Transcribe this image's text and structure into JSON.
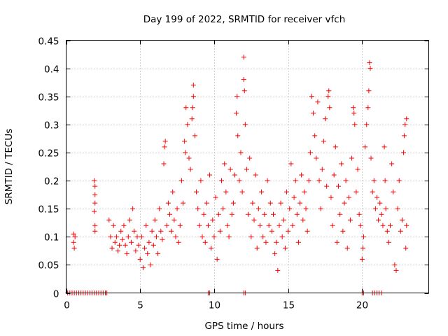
{
  "chart_data": {
    "type": "scatter",
    "title": "Day 199 of 2022, SRMTID for receiver vfch",
    "xlabel": "GPS time / hours",
    "ylabel": "SRMTID / TECUs",
    "xlim": [
      0,
      24.5
    ],
    "ylim": [
      0,
      0.45
    ],
    "x_ticks": [
      0,
      5,
      10,
      15,
      20
    ],
    "x_tick_labels": [
      "0",
      "5",
      "10",
      "15",
      "20"
    ],
    "y_ticks": [
      0,
      0.05,
      0.1,
      0.15,
      0.2,
      0.25,
      0.3,
      0.35,
      0.4,
      0.45
    ],
    "y_tick_labels": [
      "0",
      "0.05",
      "0.1",
      "0.15",
      "0.2",
      "0.25",
      "0.3",
      "0.35",
      "0.4",
      "0.45"
    ],
    "grid": true,
    "marker": "plus",
    "point_color": "#ff0000",
    "series": [
      {
        "name": "vfch",
        "points": [
          [
            0.1,
            0
          ],
          [
            0.25,
            0
          ],
          [
            0.4,
            0
          ],
          [
            0.55,
            0
          ],
          [
            0.7,
            0
          ],
          [
            0.85,
            0
          ],
          [
            1.0,
            0
          ],
          [
            1.15,
            0
          ],
          [
            1.3,
            0
          ],
          [
            1.45,
            0
          ],
          [
            1.6,
            0
          ],
          [
            1.75,
            0
          ],
          [
            1.9,
            0
          ],
          [
            2.05,
            0
          ],
          [
            2.2,
            0
          ],
          [
            2.35,
            0
          ],
          [
            2.5,
            0
          ],
          [
            2.65,
            0
          ],
          [
            2.75,
            0
          ],
          [
            9.6,
            0
          ],
          [
            9.7,
            0
          ],
          [
            12.0,
            0
          ],
          [
            12.1,
            0
          ],
          [
            20.0,
            0
          ],
          [
            20.1,
            0
          ],
          [
            20.7,
            0
          ],
          [
            20.85,
            0
          ],
          [
            21.0,
            0
          ],
          [
            21.15,
            0
          ],
          [
            21.3,
            0
          ],
          [
            0.5,
            0.105
          ],
          [
            0.5,
            0.09
          ],
          [
            0.55,
            0.08
          ],
          [
            0.6,
            0.1
          ],
          [
            1.9,
            0.2
          ],
          [
            1.95,
            0.19
          ],
          [
            1.95,
            0.175
          ],
          [
            1.95,
            0.16
          ],
          [
            1.9,
            0.145
          ],
          [
            1.95,
            0.12
          ],
          [
            1.95,
            0.11
          ],
          [
            2.9,
            0.13
          ],
          [
            3.0,
            0.1
          ],
          [
            3.1,
            0.08
          ],
          [
            3.2,
            0.12
          ],
          [
            3.3,
            0.09
          ],
          [
            3.4,
            0.1
          ],
          [
            3.5,
            0.075
          ],
          [
            3.6,
            0.085
          ],
          [
            3.7,
            0.11
          ],
          [
            3.8,
            0.095
          ],
          [
            3.9,
            0.12
          ],
          [
            4.0,
            0.085
          ],
          [
            4.1,
            0.07
          ],
          [
            4.2,
            0.1
          ],
          [
            4.3,
            0.13
          ],
          [
            4.4,
            0.09
          ],
          [
            4.5,
            0.15
          ],
          [
            4.6,
            0.11
          ],
          [
            4.7,
            0.075
          ],
          [
            4.8,
            0.1
          ],
          [
            4.9,
            0.085
          ],
          [
            5.0,
            0.06
          ],
          [
            5.1,
            0.1
          ],
          [
            5.2,
            0.045
          ],
          [
            5.3,
            0.08
          ],
          [
            5.4,
            0.12
          ],
          [
            5.5,
            0.07
          ],
          [
            5.6,
            0.09
          ],
          [
            5.7,
            0.05
          ],
          [
            5.8,
            0.11
          ],
          [
            5.9,
            0.085
          ],
          [
            6.0,
            0.13
          ],
          [
            6.1,
            0.1
          ],
          [
            6.2,
            0.07
          ],
          [
            6.3,
            0.15
          ],
          [
            6.4,
            0.11
          ],
          [
            6.5,
            0.095
          ],
          [
            6.6,
            0.23
          ],
          [
            6.65,
            0.26
          ],
          [
            6.7,
            0.27
          ],
          [
            6.8,
            0.12
          ],
          [
            6.9,
            0.16
          ],
          [
            7.0,
            0.14
          ],
          [
            7.1,
            0.11
          ],
          [
            7.2,
            0.18
          ],
          [
            7.3,
            0.13
          ],
          [
            7.4,
            0.1
          ],
          [
            7.5,
            0.15
          ],
          [
            7.6,
            0.09
          ],
          [
            7.7,
            0.12
          ],
          [
            7.8,
            0.2
          ],
          [
            7.9,
            0.16
          ],
          [
            8.0,
            0.27
          ],
          [
            8.05,
            0.25
          ],
          [
            8.1,
            0.33
          ],
          [
            8.2,
            0.3
          ],
          [
            8.3,
            0.24
          ],
          [
            8.4,
            0.22
          ],
          [
            8.5,
            0.31
          ],
          [
            8.55,
            0.33
          ],
          [
            8.6,
            0.37
          ],
          [
            8.6,
            0.35
          ],
          [
            8.7,
            0.28
          ],
          [
            8.8,
            0.18
          ],
          [
            8.9,
            0.15
          ],
          [
            9.0,
            0.12
          ],
          [
            9.1,
            0.2
          ],
          [
            9.2,
            0.1
          ],
          [
            9.3,
            0.14
          ],
          [
            9.4,
            0.09
          ],
          [
            9.5,
            0.16
          ],
          [
            9.6,
            0.12
          ],
          [
            9.7,
            0.21
          ],
          [
            9.8,
            0.08
          ],
          [
            9.9,
            0.13
          ],
          [
            10.0,
            0.1
          ],
          [
            10.1,
            0.17
          ],
          [
            10.2,
            0.06
          ],
          [
            10.3,
            0.14
          ],
          [
            10.4,
            0.11
          ],
          [
            10.5,
            0.2
          ],
          [
            10.6,
            0.15
          ],
          [
            10.7,
            0.23
          ],
          [
            10.8,
            0.18
          ],
          [
            10.9,
            0.12
          ],
          [
            11.0,
            0.1
          ],
          [
            11.1,
            0.22
          ],
          [
            11.2,
            0.14
          ],
          [
            11.3,
            0.16
          ],
          [
            11.4,
            0.21
          ],
          [
            11.5,
            0.32
          ],
          [
            11.55,
            0.35
          ],
          [
            11.6,
            0.28
          ],
          [
            11.7,
            0.2
          ],
          [
            11.8,
            0.25
          ],
          [
            11.9,
            0.18
          ],
          [
            12.0,
            0.42
          ],
          [
            12.0,
            0.38
          ],
          [
            12.05,
            0.36
          ],
          [
            12.1,
            0.3
          ],
          [
            12.2,
            0.22
          ],
          [
            12.3,
            0.14
          ],
          [
            12.4,
            0.24
          ],
          [
            12.5,
            0.1
          ],
          [
            12.6,
            0.16
          ],
          [
            12.7,
            0.13
          ],
          [
            12.8,
            0.21
          ],
          [
            12.9,
            0.08
          ],
          [
            13.0,
            0.15
          ],
          [
            13.1,
            0.12
          ],
          [
            13.2,
            0.18
          ],
          [
            13.3,
            0.1
          ],
          [
            13.4,
            0.14
          ],
          [
            13.5,
            0.09
          ],
          [
            13.6,
            0.2
          ],
          [
            13.7,
            0.12
          ],
          [
            13.8,
            0.16
          ],
          [
            13.9,
            0.11
          ],
          [
            14.0,
            0.14
          ],
          [
            14.1,
            0.07
          ],
          [
            14.2,
            0.09
          ],
          [
            14.3,
            0.04
          ],
          [
            14.4,
            0.12
          ],
          [
            14.5,
            0.16
          ],
          [
            14.6,
            0.1
          ],
          [
            14.7,
            0.13
          ],
          [
            14.8,
            0.08
          ],
          [
            14.9,
            0.18
          ],
          [
            15.0,
            0.11
          ],
          [
            15.1,
            0.15
          ],
          [
            15.2,
            0.23
          ],
          [
            15.3,
            0.12
          ],
          [
            15.4,
            0.17
          ],
          [
            15.5,
            0.2
          ],
          [
            15.6,
            0.14
          ],
          [
            15.7,
            0.09
          ],
          [
            15.8,
            0.16
          ],
          [
            15.9,
            0.21
          ],
          [
            16.0,
            0.13
          ],
          [
            16.1,
            0.18
          ],
          [
            16.2,
            0.15
          ],
          [
            16.3,
            0.11
          ],
          [
            16.4,
            0.2
          ],
          [
            16.5,
            0.25
          ],
          [
            16.6,
            0.35
          ],
          [
            16.7,
            0.32
          ],
          [
            16.8,
            0.28
          ],
          [
            16.9,
            0.24
          ],
          [
            17.0,
            0.34
          ],
          [
            17.1,
            0.2
          ],
          [
            17.2,
            0.15
          ],
          [
            17.3,
            0.22
          ],
          [
            17.4,
            0.27
          ],
          [
            17.5,
            0.31
          ],
          [
            17.6,
            0.19
          ],
          [
            17.7,
            0.35
          ],
          [
            17.75,
            0.36
          ],
          [
            17.8,
            0.33
          ],
          [
            17.9,
            0.17
          ],
          [
            18.0,
            0.12
          ],
          [
            18.1,
            0.21
          ],
          [
            18.2,
            0.26
          ],
          [
            18.3,
            0.09
          ],
          [
            18.4,
            0.19
          ],
          [
            18.5,
            0.14
          ],
          [
            18.6,
            0.23
          ],
          [
            18.7,
            0.11
          ],
          [
            18.8,
            0.16
          ],
          [
            18.9,
            0.2
          ],
          [
            19.0,
            0.08
          ],
          [
            19.1,
            0.17
          ],
          [
            19.2,
            0.13
          ],
          [
            19.3,
            0.24
          ],
          [
            19.4,
            0.33
          ],
          [
            19.45,
            0.32
          ],
          [
            19.5,
            0.3
          ],
          [
            19.6,
            0.18
          ],
          [
            19.7,
            0.22
          ],
          [
            19.8,
            0.14
          ],
          [
            19.9,
            0.12
          ],
          [
            20.0,
            0.06
          ],
          [
            20.05,
            0.08
          ],
          [
            20.1,
            0.1
          ],
          [
            20.2,
            0.26
          ],
          [
            20.3,
            0.3
          ],
          [
            20.4,
            0.33
          ],
          [
            20.45,
            0.36
          ],
          [
            20.5,
            0.41
          ],
          [
            20.55,
            0.4
          ],
          [
            20.6,
            0.24
          ],
          [
            20.7,
            0.18
          ],
          [
            20.8,
            0.2
          ],
          [
            20.9,
            0.15
          ],
          [
            21.0,
            0.17
          ],
          [
            21.1,
            0.13
          ],
          [
            21.2,
            0.16
          ],
          [
            21.3,
            0.14
          ],
          [
            21.4,
            0.12
          ],
          [
            21.5,
            0.26
          ],
          [
            21.55,
            0.2
          ],
          [
            21.6,
            0.15
          ],
          [
            21.7,
            0.11
          ],
          [
            21.8,
            0.09
          ],
          [
            21.9,
            0.12
          ],
          [
            22.0,
            0.23
          ],
          [
            22.1,
            0.18
          ],
          [
            22.2,
            0.05
          ],
          [
            22.3,
            0.04
          ],
          [
            22.4,
            0.15
          ],
          [
            22.5,
            0.2
          ],
          [
            22.6,
            0.11
          ],
          [
            22.7,
            0.13
          ],
          [
            22.8,
            0.25
          ],
          [
            22.85,
            0.28
          ],
          [
            22.9,
            0.3
          ],
          [
            22.95,
            0.08
          ],
          [
            23.0,
            0.31
          ],
          [
            23.0,
            0.12
          ]
        ]
      }
    ]
  }
}
